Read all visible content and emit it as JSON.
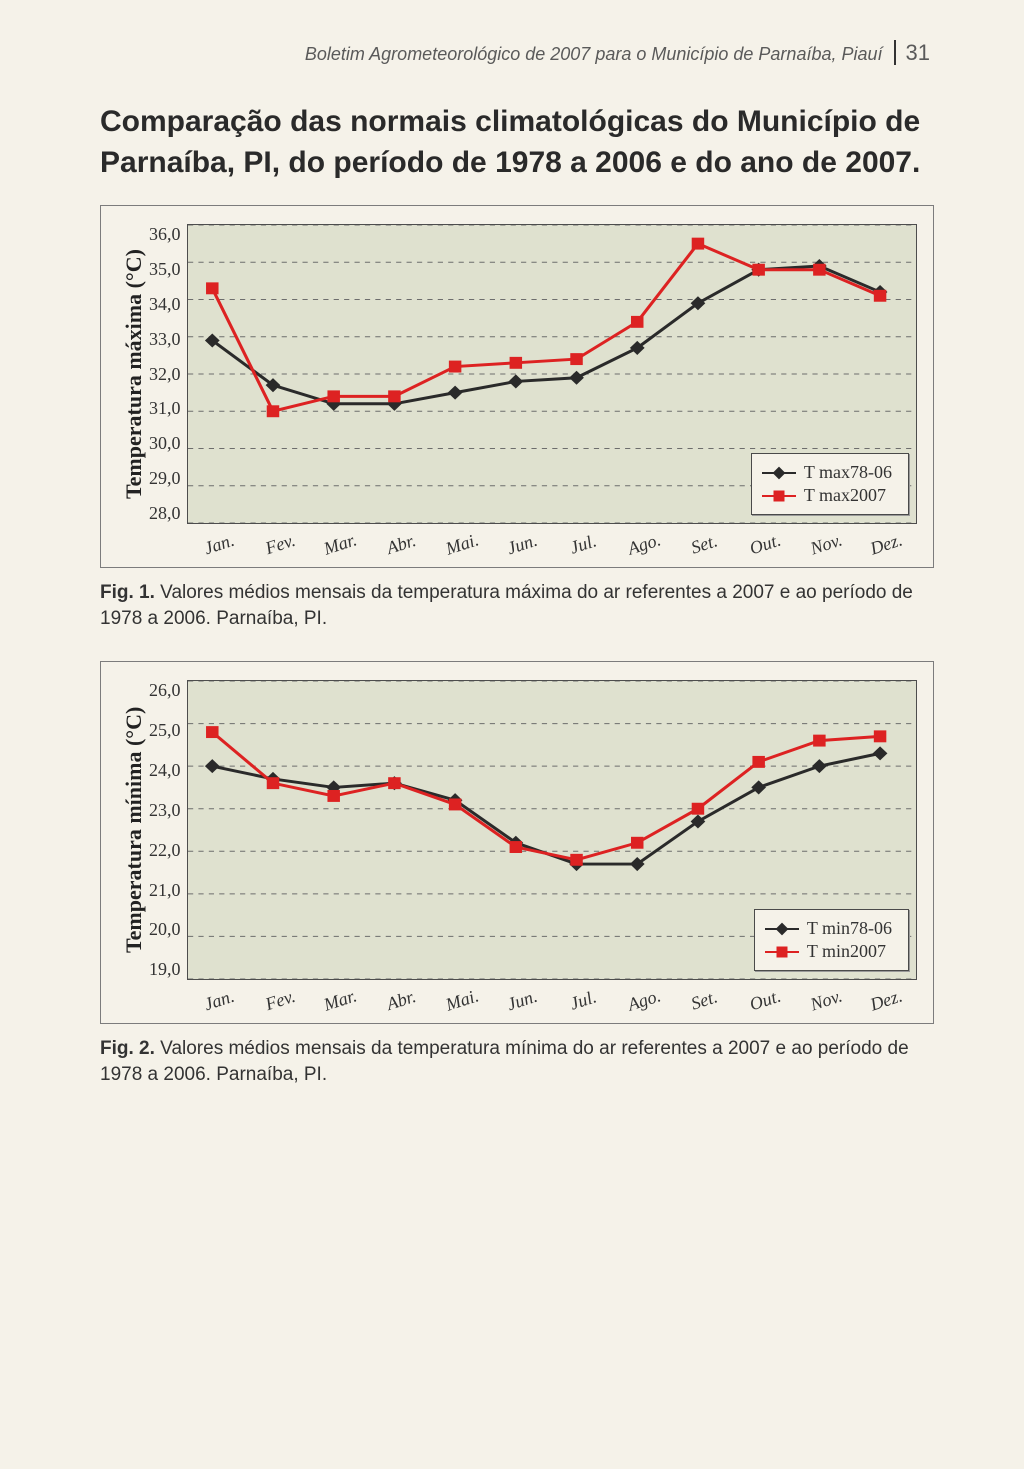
{
  "header": {
    "running": "Boletim Agrometeorológico de 2007 para o Município de Parnaíba, Piauí",
    "page": "31"
  },
  "title": "Comparação das normais climatológicas do Município de Parnaíba, PI, do período de 1978 a 2006 e do ano de 2007.",
  "fig1": {
    "ylabel": "Temperatura máxima (°C)",
    "ylim": [
      28.0,
      36.0
    ],
    "ytick_step": 1.0,
    "yticks": [
      "36,0",
      "35,0",
      "34,0",
      "33,0",
      "32,0",
      "31,0",
      "30,0",
      "29,0",
      "28,0"
    ],
    "months": [
      "Jan.",
      "Fev.",
      "Mar.",
      "Abr.",
      "Mai.",
      "Jun.",
      "Jul.",
      "Ago.",
      "Set.",
      "Out.",
      "Nov.",
      "Dez."
    ],
    "series": [
      {
        "name": "T max78-06",
        "color": "#2a2a2a",
        "marker": "diamond",
        "values": [
          32.9,
          31.7,
          31.2,
          31.2,
          31.5,
          31.8,
          31.9,
          32.7,
          33.9,
          34.8,
          34.9,
          34.2
        ]
      },
      {
        "name": "T max2007",
        "color": "#d22",
        "marker": "square",
        "values": [
          34.3,
          31.0,
          31.4,
          31.4,
          32.2,
          32.3,
          32.4,
          33.4,
          35.5,
          34.8,
          34.8,
          34.1
        ]
      }
    ],
    "legend": [
      "T max78-06",
      "T max2007"
    ],
    "background": "#dfe1cf",
    "grid": "#6d6d6d"
  },
  "caption1": {
    "label": "Fig. 1.",
    "text": " Valores médios mensais da temperatura máxima do ar referentes a 2007 e ao período de 1978 a 2006. Parnaíba, PI."
  },
  "fig2": {
    "ylabel": "Temperatura mínima (°C)",
    "ylim": [
      19.0,
      26.0
    ],
    "ytick_step": 1.0,
    "yticks": [
      "26,0",
      "25,0",
      "24,0",
      "23,0",
      "22,0",
      "21,0",
      "20,0",
      "19,0"
    ],
    "months": [
      "Jan.",
      "Fev.",
      "Mar.",
      "Abr.",
      "Mai.",
      "Jun.",
      "Jul.",
      "Ago.",
      "Set.",
      "Out.",
      "Nov.",
      "Dez."
    ],
    "series": [
      {
        "name": "T min78-06",
        "color": "#2a2a2a",
        "marker": "diamond",
        "values": [
          24.0,
          23.7,
          23.5,
          23.6,
          23.2,
          22.2,
          21.7,
          21.7,
          22.7,
          23.5,
          24.0,
          24.3
        ]
      },
      {
        "name": "T min2007",
        "color": "#d22",
        "marker": "square",
        "values": [
          24.8,
          23.6,
          23.3,
          23.6,
          23.1,
          22.1,
          21.8,
          22.2,
          23.0,
          24.1,
          24.6,
          24.7
        ]
      }
    ],
    "legend": [
      "T min78-06",
      "T min2007"
    ],
    "background": "#dfe1cf",
    "grid": "#6d6d6d"
  },
  "caption2": {
    "label": "Fig. 2.",
    "text": " Valores médios mensais da temperatura mínima do ar referentes a 2007 e ao período de 1978 a 2006. Parnaíba, PI."
  }
}
